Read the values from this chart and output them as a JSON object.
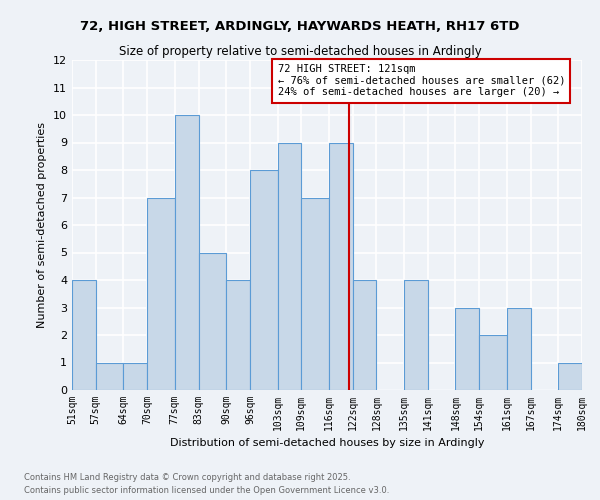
{
  "title1": "72, HIGH STREET, ARDINGLY, HAYWARDS HEATH, RH17 6TD",
  "title2": "Size of property relative to semi-detached houses in Ardingly",
  "xlabel": "Distribution of semi-detached houses by size in Ardingly",
  "ylabel": "Number of semi-detached properties",
  "footnote1": "Contains HM Land Registry data © Crown copyright and database right 2025.",
  "footnote2": "Contains public sector information licensed under the Open Government Licence v3.0.",
  "bins": [
    51,
    57,
    64,
    70,
    77,
    83,
    90,
    96,
    103,
    109,
    116,
    122,
    128,
    135,
    141,
    148,
    154,
    161,
    167,
    174,
    180
  ],
  "bin_labels": [
    "51sqm",
    "57sqm",
    "64sqm",
    "70sqm",
    "77sqm",
    "83sqm",
    "90sqm",
    "96sqm",
    "103sqm",
    "109sqm",
    "116sqm",
    "122sqm",
    "128sqm",
    "135sqm",
    "141sqm",
    "148sqm",
    "154sqm",
    "161sqm",
    "167sqm",
    "174sqm",
    "180sqm"
  ],
  "counts": [
    4,
    1,
    1,
    7,
    10,
    5,
    4,
    8,
    9,
    7,
    9,
    4,
    0,
    4,
    0,
    3,
    2,
    3,
    0,
    1
  ],
  "bar_color": "#c8d8e8",
  "bar_edge_color": "#5b9bd5",
  "vline_x": 121,
  "vline_color": "#cc0000",
  "annotation_text": "72 HIGH STREET: 121sqm\n← 76% of semi-detached houses are smaller (62)\n24% of semi-detached houses are larger (20) →",
  "annotation_box_color": "#cc0000",
  "ylim": [
    0,
    12
  ],
  "yticks": [
    0,
    1,
    2,
    3,
    4,
    5,
    6,
    7,
    8,
    9,
    10,
    11,
    12
  ],
  "background_color": "#eef2f7",
  "grid_color": "#ffffff"
}
